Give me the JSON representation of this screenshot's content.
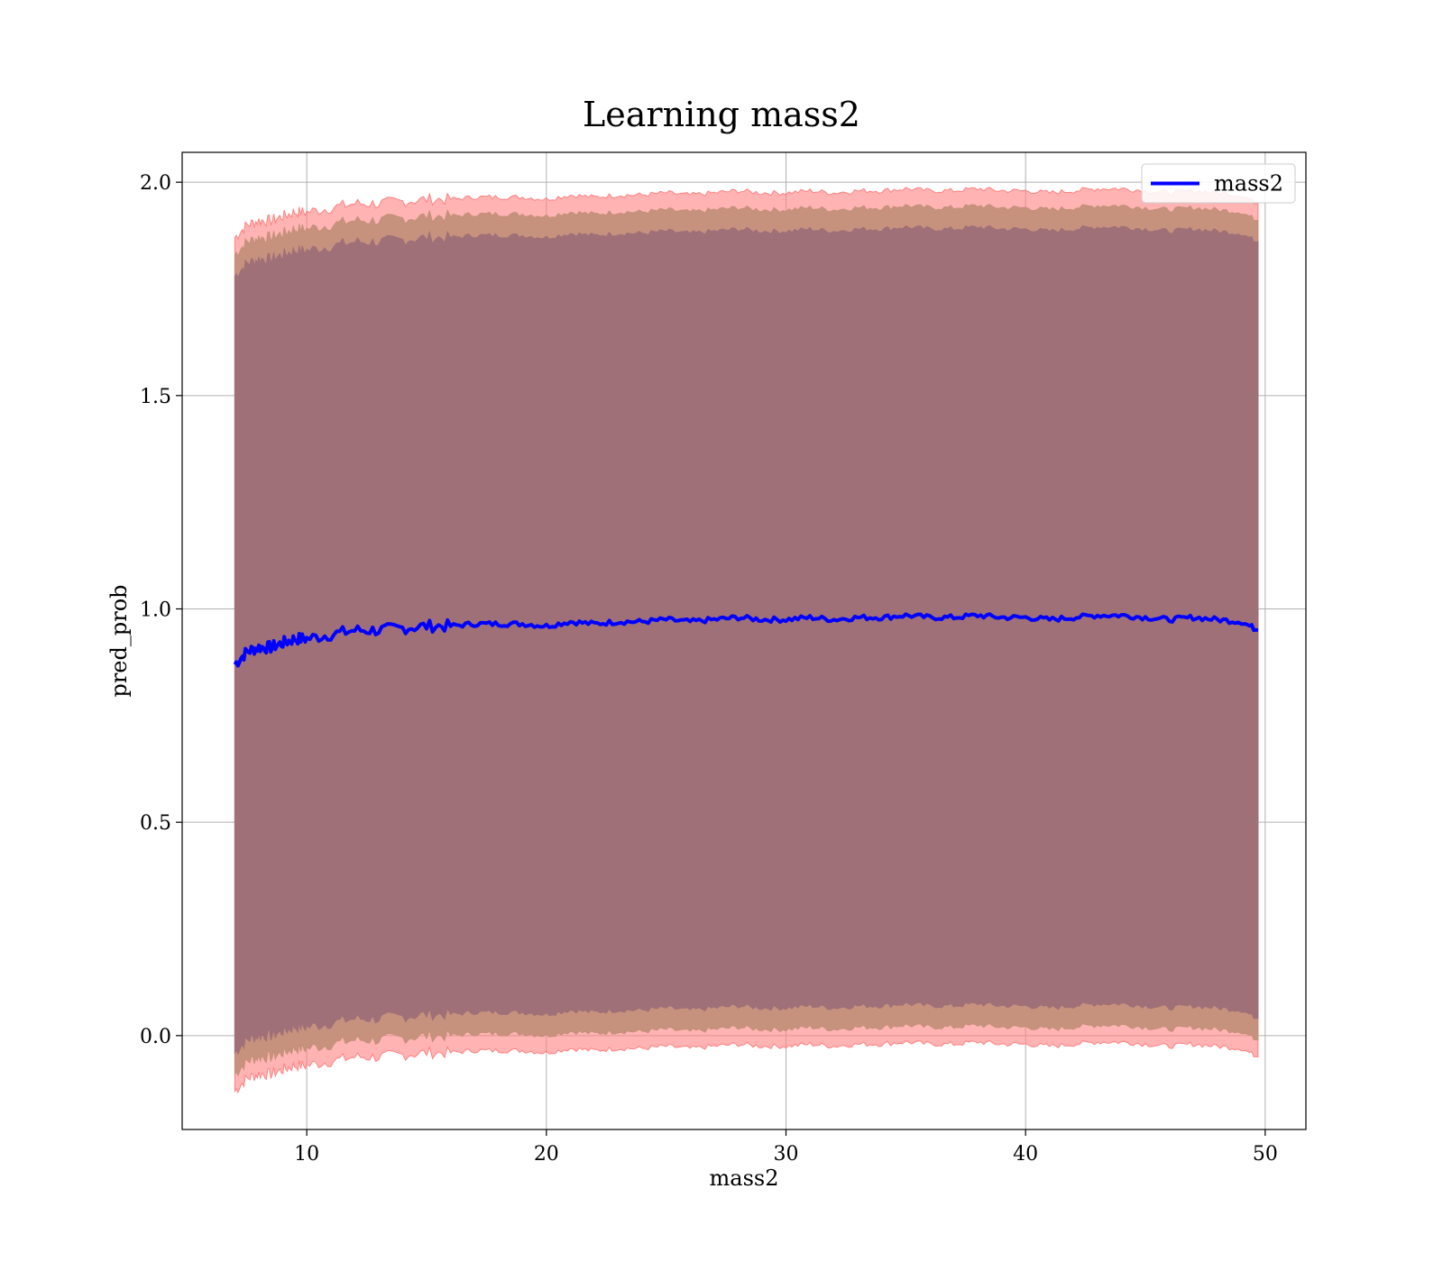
{
  "chart_data": {
    "type": "line",
    "title": "Learning mass2",
    "xlabel": "mass2",
    "ylabel": "pred_prob",
    "xlim": [
      4.8,
      51.7
    ],
    "ylim": [
      -0.22,
      2.07
    ],
    "xticks": [
      10,
      20,
      30,
      40,
      50
    ],
    "xtick_labels": [
      "10",
      "20",
      "30",
      "40",
      "50"
    ],
    "yticks": [
      0.0,
      0.5,
      1.0,
      1.5,
      2.0
    ],
    "ytick_labels": [
      "0.0",
      "0.5",
      "1.0",
      "1.5",
      "2.0"
    ],
    "grid": true,
    "legend": {
      "position": "top-right",
      "entries": [
        "mass2"
      ]
    },
    "colors": {
      "line": "#0000ff",
      "band_outer": "#ff8080",
      "band_middle": "#c4907a",
      "band_inner": "#a07078",
      "grid": "#b0b0b0"
    },
    "series": [
      {
        "name": "mass2",
        "x": [
          7,
          7.5,
          8,
          8.5,
          9,
          9.5,
          10,
          11,
          12,
          13,
          14,
          15,
          16,
          17,
          18,
          19,
          20,
          21,
          22,
          23,
          24,
          25,
          26,
          27,
          28,
          29,
          30,
          31,
          32,
          33,
          34,
          35,
          36,
          37,
          38,
          39,
          40,
          41,
          42,
          43,
          44,
          45,
          46,
          47,
          48,
          49,
          49.7
        ],
        "y": [
          0.87,
          0.9,
          0.91,
          0.91,
          0.92,
          0.93,
          0.93,
          0.94,
          0.95,
          0.95,
          0.955,
          0.96,
          0.96,
          0.965,
          0.965,
          0.965,
          0.96,
          0.97,
          0.965,
          0.97,
          0.97,
          0.975,
          0.97,
          0.975,
          0.98,
          0.975,
          0.975,
          0.98,
          0.975,
          0.98,
          0.98,
          0.985,
          0.98,
          0.98,
          0.985,
          0.98,
          0.98,
          0.975,
          0.98,
          0.985,
          0.985,
          0.98,
          0.975,
          0.98,
          0.975,
          0.97,
          0.95
        ]
      }
    ],
    "bands": [
      {
        "name": "outer",
        "offset": 1.0
      },
      {
        "name": "middle",
        "offset": 0.96
      },
      {
        "name": "inner",
        "offset": 0.91
      }
    ]
  }
}
